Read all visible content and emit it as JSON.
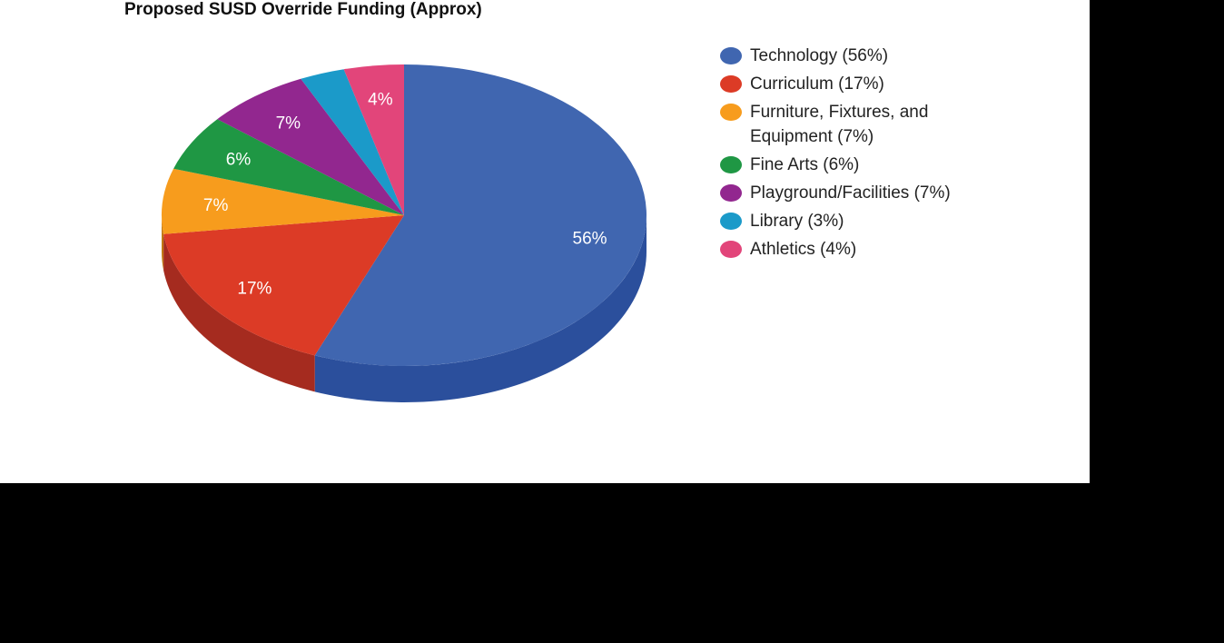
{
  "chart_data": {
    "type": "pie",
    "style": "3d",
    "title": "Proposed SUSD Override Funding (Approx)",
    "legend_position": "right",
    "slices": [
      {
        "name": "Technology",
        "value": 56,
        "label": "56%",
        "legend": "Technology (56%)",
        "color": "#4066b0",
        "side": "#2b4f9c"
      },
      {
        "name": "Curriculum",
        "value": 17,
        "label": "17%",
        "legend": "Curriculum (17%)",
        "color": "#dc3b26",
        "side": "#a52b1f"
      },
      {
        "name": "Furniture, Fixtures, and Equipment",
        "value": 7,
        "label": "7%",
        "legend": "Furniture, Fixtures, and Equipment (7%)",
        "color": "#f79c1d",
        "side": "#c07712"
      },
      {
        "name": "Fine Arts",
        "value": 6,
        "label": "6%",
        "legend": "Fine Arts (6%)",
        "color": "#1f9744",
        "side": "#167032"
      },
      {
        "name": "Playground/Facilities",
        "value": 7,
        "label": "7%",
        "legend": "Playground/Facilities (7%)",
        "color": "#92278f",
        "side": "#6d1c6b"
      },
      {
        "name": "Library",
        "value": 3,
        "label": "",
        "legend": "Library (3%)",
        "color": "#1b9ac9",
        "side": "#13739a"
      },
      {
        "name": "Athletics",
        "value": 4,
        "label": "4%",
        "legend": "Athletics (4%)",
        "color": "#e2457a",
        "side": "#ae335c"
      }
    ]
  }
}
